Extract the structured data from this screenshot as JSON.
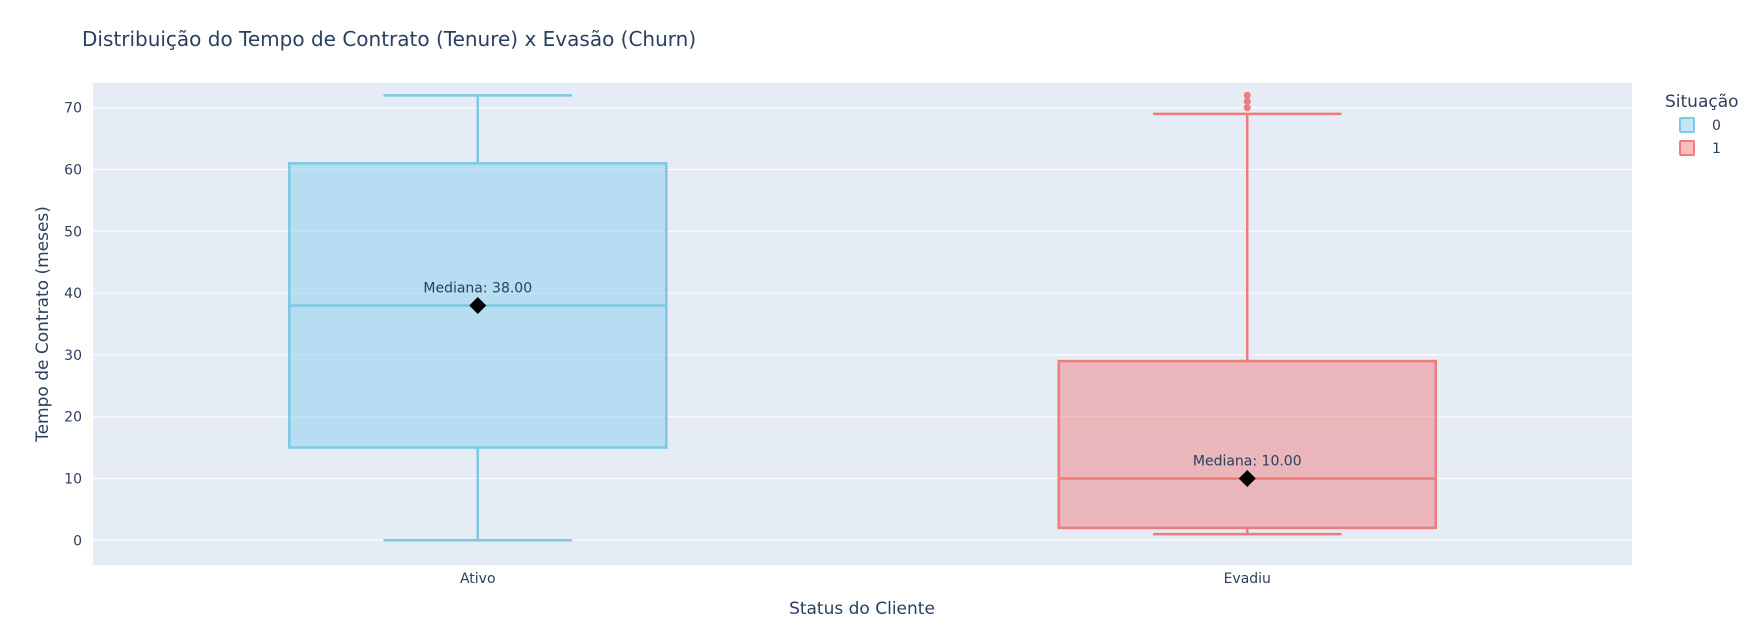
{
  "chart_data": {
    "type": "box",
    "title": "Distribuição do Tempo de Contrato (Tenure) x Evasão (Churn)",
    "xlabel": "Status do Cliente",
    "ylabel": "Tempo de Contrato (meses)",
    "ylim": [
      -4,
      74
    ],
    "yticks": [
      0,
      10,
      20,
      30,
      40,
      50,
      60,
      70
    ],
    "grid": true,
    "legend": {
      "title": "Situação",
      "placement": "top-right"
    },
    "categories": [
      "Ativo",
      "Evadiu"
    ],
    "series": [
      {
        "name": "0",
        "category": "Ativo",
        "color": "#87CEEB",
        "line_color": "#7ec8e3",
        "min": 0,
        "q1": 15,
        "median": 38,
        "q3": 61,
        "max": 72,
        "outliers": []
      },
      {
        "name": "1",
        "category": "Evadiu",
        "color": "#F08080",
        "line_color": "#ef7c7c",
        "min": 1,
        "q1": 2,
        "median": 10,
        "q3": 29,
        "max": 69,
        "outliers": [
          70,
          71,
          72
        ]
      }
    ],
    "annotations": [
      {
        "category": "Ativo",
        "y": 38,
        "text": "Mediana: 38.00"
      },
      {
        "category": "Evadiu",
        "y": 10,
        "text": "Mediana: 10.00"
      }
    ]
  }
}
